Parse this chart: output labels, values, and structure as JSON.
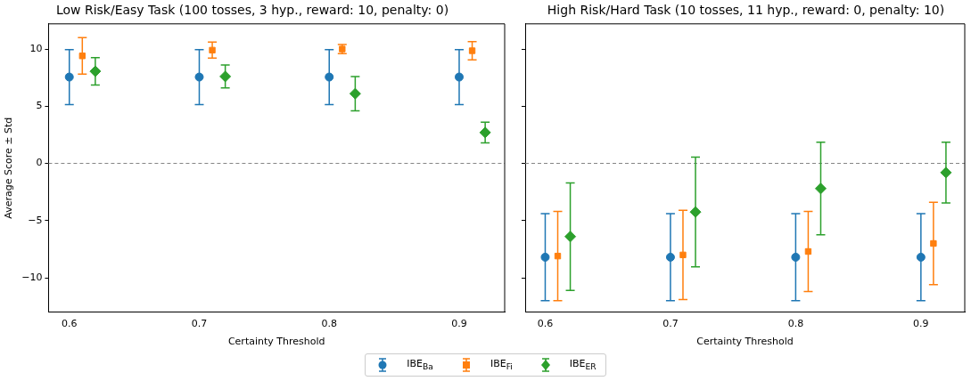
{
  "chart_data": [
    {
      "type": "scatter",
      "title": "Low Risk/Easy Task (100 tosses, 3 hyp., reward: 10, penalty: 0)",
      "xlabel": "Certainty Threshold",
      "ylabel": "Average Score ± Std",
      "xlim": [
        0.584,
        0.935
      ],
      "xticks": [
        0.6,
        0.7,
        0.8,
        0.9
      ],
      "ylim": [
        -13,
        12.2
      ],
      "yticks": [
        -10,
        -5,
        0,
        5,
        10
      ],
      "legend": "bottom",
      "ref_lines": [
        {
          "axis": "y",
          "value": 0,
          "color": "#808080",
          "line_style": "dashed"
        }
      ],
      "series": [
        {
          "name": "IBE$_{Ba}$",
          "color": "#1f77b4",
          "marker": "circle",
          "x": [
            0.6,
            0.7,
            0.8,
            0.9
          ],
          "values": [
            7.55,
            7.55,
            7.55,
            7.55
          ],
          "errors": [
            2.4,
            2.4,
            2.4,
            2.4
          ]
        },
        {
          "name": "IBE$_{Fi}$",
          "color": "#ff7f0e",
          "marker": "square",
          "x": [
            0.61,
            0.71,
            0.81,
            0.91
          ],
          "values": [
            9.4,
            9.9,
            10.0,
            9.85
          ],
          "errors": [
            1.6,
            0.7,
            0.4,
            0.8
          ]
        },
        {
          "name": "IBE$_{ER}$",
          "color": "#2ca02c",
          "marker": "diamond",
          "x": [
            0.62,
            0.72,
            0.82,
            0.92
          ],
          "values": [
            8.05,
            7.6,
            6.1,
            2.7
          ],
          "errors": [
            1.2,
            1.0,
            1.5,
            0.9
          ]
        }
      ]
    },
    {
      "type": "scatter",
      "title": "High Risk/Hard Task (10 tosses, 11 hyp., reward: 0, penalty: 10)",
      "xlabel": "Certainty Threshold",
      "xlim": [
        0.584,
        0.935
      ],
      "xticks": [
        0.6,
        0.7,
        0.8,
        0.9
      ],
      "ylim": [
        -13,
        12.2
      ],
      "yticks": [
        -10,
        -5,
        0,
        5,
        10
      ],
      "tick_labels": "x",
      "ref_lines": [
        {
          "axis": "y",
          "value": 0,
          "color": "#808080",
          "line_style": "dashed"
        }
      ],
      "series": [
        {
          "color": "#1f77b4",
          "marker": "circle",
          "x": [
            0.6,
            0.7,
            0.8,
            0.9
          ],
          "values": [
            -8.2,
            -8.2,
            -8.2,
            -8.2
          ],
          "errors": [
            3.8,
            3.8,
            3.8,
            3.8
          ]
        },
        {
          "color": "#ff7f0e",
          "marker": "square",
          "x": [
            0.61,
            0.71,
            0.81,
            0.91
          ],
          "values": [
            -8.1,
            -8.0,
            -7.7,
            -7.0
          ],
          "errors": [
            3.9,
            3.9,
            3.5,
            3.6
          ]
        },
        {
          "color": "#2ca02c",
          "marker": "diamond",
          "x": [
            0.62,
            0.72,
            0.82,
            0.92
          ],
          "values": [
            -6.4,
            -4.25,
            -2.2,
            -0.8
          ],
          "errors": [
            4.7,
            4.8,
            4.05,
            2.65
          ]
        }
      ]
    }
  ]
}
